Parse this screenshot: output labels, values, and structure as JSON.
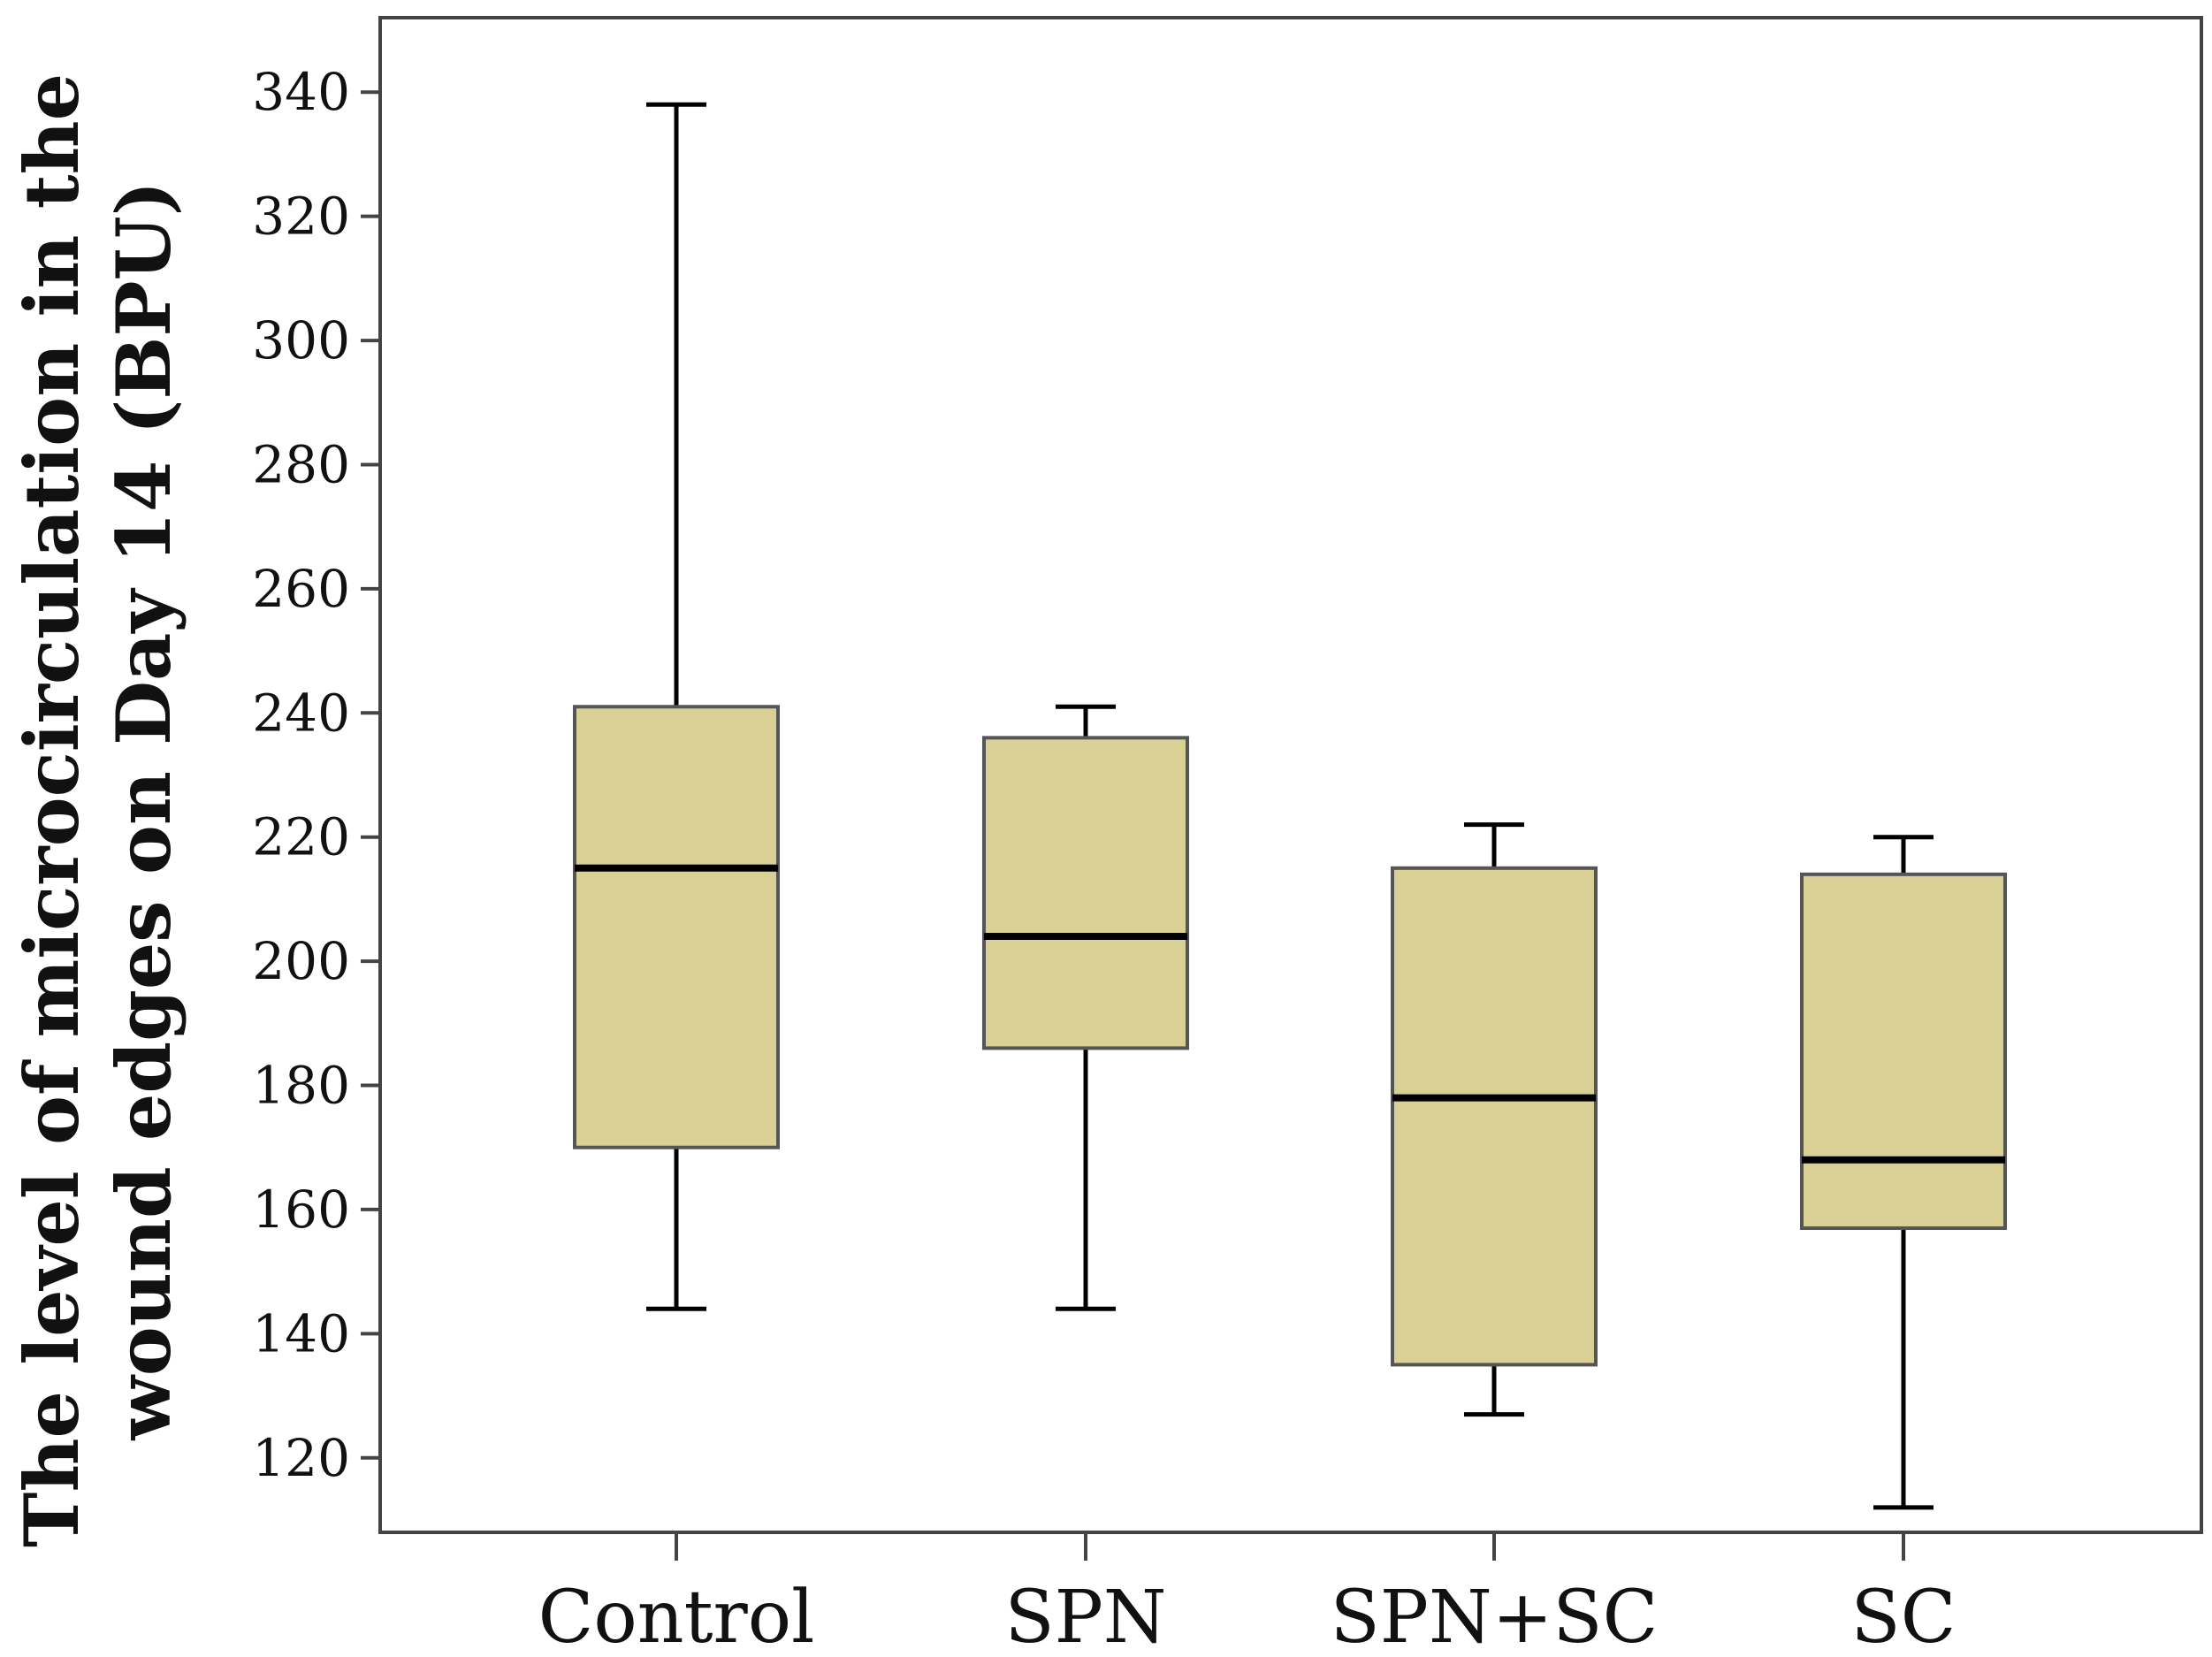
{
  "chart_data": {
    "type": "boxplot",
    "title": "",
    "xlabel": "",
    "ylabel": [
      "The level of microcirculation in the",
      "wound edges on Day 14 (BPU)"
    ],
    "ylim": [
      108,
      352
    ],
    "yticks": [
      120,
      140,
      160,
      180,
      200,
      220,
      240,
      260,
      280,
      300,
      320,
      340
    ],
    "categories": [
      "Control",
      "SPN",
      "SPN+SC",
      "SC"
    ],
    "series": [
      {
        "name": "Control",
        "whisker_low": 144,
        "q1": 170,
        "median": 215,
        "q3": 241,
        "whisker_high": 338
      },
      {
        "name": "SPN",
        "whisker_low": 144,
        "q1": 186,
        "median": 204,
        "q3": 236,
        "whisker_high": 241
      },
      {
        "name": "SPN+SC",
        "whisker_low": 127,
        "q1": 135,
        "median": 178,
        "q3": 215,
        "whisker_high": 222
      },
      {
        "name": "SC",
        "whisker_low": 112,
        "q1": 157,
        "median": 168,
        "q3": 214,
        "whisker_high": 220
      }
    ],
    "colors": {
      "box_fill": "#d8d095",
      "box_edge": "#555555",
      "median": "#000000",
      "whisker": "#000000",
      "axis": "#444444"
    }
  }
}
